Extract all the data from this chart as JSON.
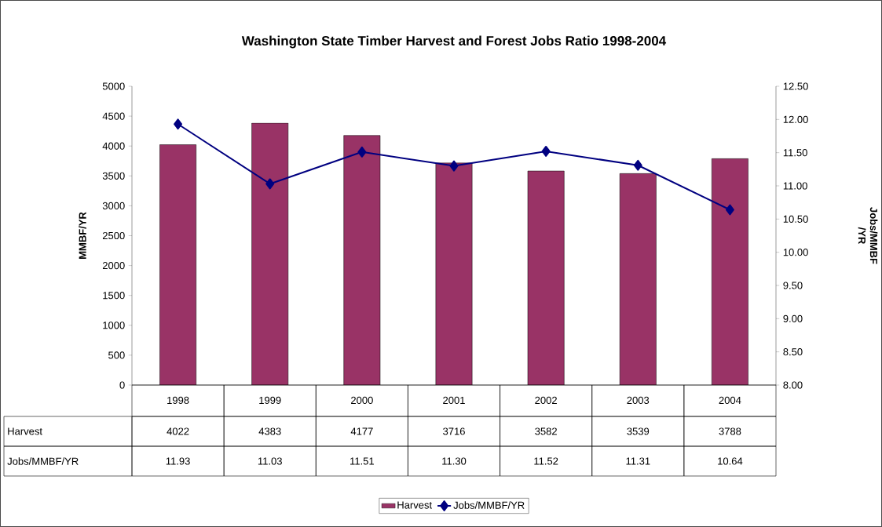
{
  "chart_data": {
    "type": "bar",
    "title": "Washington State Timber Harvest and Forest Jobs Ratio  1998-2004",
    "ylabel": "MMBF/YR",
    "y2label": "Jobs/MMBF /YR",
    "categories": [
      "1998",
      "1999",
      "2000",
      "2001",
      "2002",
      "2003",
      "2004"
    ],
    "series": [
      {
        "name": "Harvest",
        "color": "#993366",
        "values": [
          4022,
          4383,
          4177,
          3716,
          3582,
          3539,
          3788
        ],
        "value_labels": [
          "4022",
          "4383",
          "4177",
          "3716",
          "3582",
          "3539",
          "3788"
        ]
      },
      {
        "name": "Jobs/MMBF/YR",
        "type": "line",
        "axis": "y2",
        "color": "#000080",
        "values": [
          11.93,
          11.03,
          11.51,
          11.3,
          11.52,
          11.31,
          10.64
        ],
        "value_labels": [
          "11.93",
          "11.03",
          "11.51",
          "11.30",
          "11.52",
          "11.31",
          "10.64"
        ]
      }
    ],
    "ylim": [
      0,
      5000
    ],
    "yticks": [
      0,
      500,
      1000,
      1500,
      2000,
      2500,
      3000,
      3500,
      4000,
      4500,
      5000
    ],
    "y2lim": [
      8,
      12.5
    ],
    "y2ticks": [
      {
        "value": 8,
        "label": "8.00"
      },
      {
        "value": 8.5,
        "label": "8.50"
      },
      {
        "value": 9,
        "label": "9.00"
      },
      {
        "value": 9.5,
        "label": "9.50"
      },
      {
        "value": 10,
        "label": "10.00"
      },
      {
        "value": 10.5,
        "label": "10.50"
      },
      {
        "value": 11,
        "label": "11.00"
      },
      {
        "value": 11.5,
        "label": "11.50"
      },
      {
        "value": 12,
        "label": "12.00"
      },
      {
        "value": 12.5,
        "label": "12.50"
      }
    ],
    "marker": "diamond",
    "legend": "bottom",
    "grid": false
  }
}
